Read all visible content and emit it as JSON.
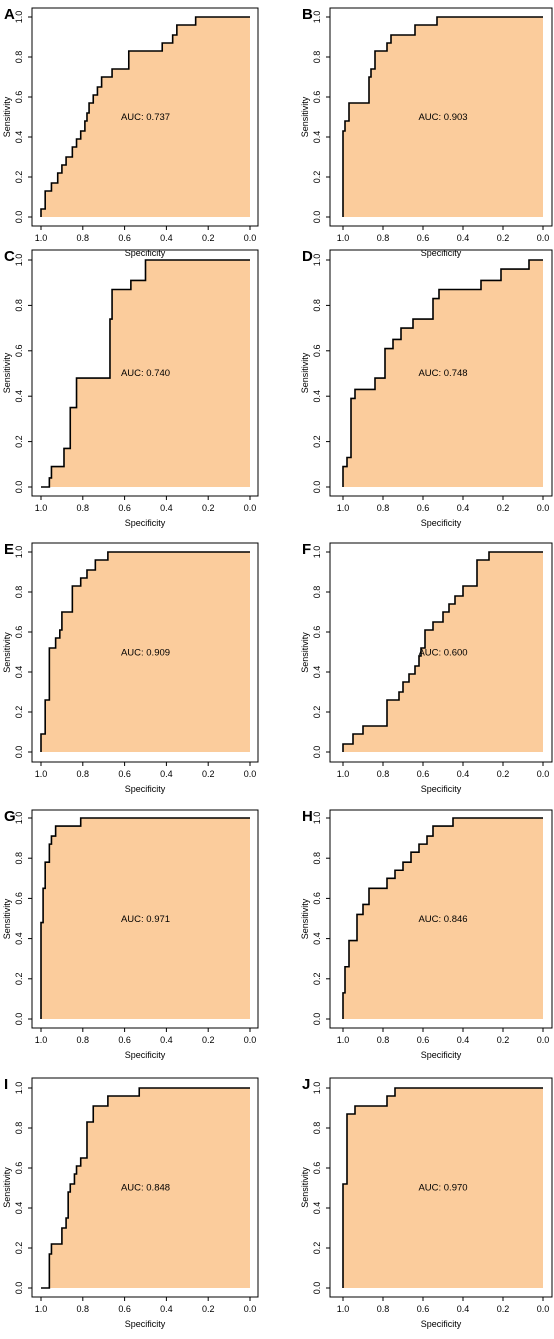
{
  "colors": {
    "fill": "#FBCC9C",
    "stroke": "#000000",
    "background": "#FFFFFF"
  },
  "chart_data": [
    {
      "panel": "A",
      "type": "area",
      "auc_label": "AUC: 0.737",
      "xlabel": "Specificity",
      "ylabel": "Sensitivity",
      "xlim": [
        1.0,
        0.0
      ],
      "ylim": [
        0.0,
        1.0
      ],
      "x_reversed": true,
      "xticks": [
        "1.0",
        "0.8",
        "0.6",
        "0.4",
        "0.2",
        "0.0"
      ],
      "yticks": [
        "0.0",
        "0.2",
        "0.4",
        "0.6",
        "0.8",
        "1.0"
      ],
      "x": [
        1.0,
        1.0,
        0.98,
        0.98,
        0.95,
        0.95,
        0.92,
        0.92,
        0.9,
        0.9,
        0.88,
        0.88,
        0.85,
        0.85,
        0.83,
        0.83,
        0.81,
        0.81,
        0.79,
        0.79,
        0.78,
        0.78,
        0.77,
        0.77,
        0.75,
        0.75,
        0.73,
        0.73,
        0.71,
        0.71,
        0.66,
        0.66,
        0.58,
        0.58,
        0.42,
        0.42,
        0.37,
        0.37,
        0.35,
        0.35,
        0.33,
        0.33,
        0.26,
        0.26,
        0.0
      ],
      "y": [
        0.0,
        0.04,
        0.04,
        0.13,
        0.13,
        0.17,
        0.17,
        0.22,
        0.22,
        0.26,
        0.26,
        0.3,
        0.3,
        0.35,
        0.35,
        0.39,
        0.39,
        0.43,
        0.43,
        0.48,
        0.48,
        0.52,
        0.52,
        0.57,
        0.57,
        0.61,
        0.61,
        0.65,
        0.65,
        0.7,
        0.7,
        0.74,
        0.74,
        0.83,
        0.83,
        0.87,
        0.87,
        0.91,
        0.91,
        0.96,
        0.96,
        0.96,
        0.96,
        1.0,
        1.0
      ]
    },
    {
      "panel": "B",
      "type": "area",
      "auc_label": "AUC: 0.903",
      "xlabel": "Specificity",
      "ylabel": "Sensitivity",
      "xlim": [
        1.0,
        0.0
      ],
      "ylim": [
        0.0,
        1.0
      ],
      "x_reversed": true,
      "xticks": [
        "1.0",
        "0.8",
        "0.6",
        "0.4",
        "0.2",
        "0.0"
      ],
      "yticks": [
        "0.0",
        "0.2",
        "0.4",
        "0.6",
        "0.8",
        "1.0"
      ],
      "x": [
        1.0,
        1.0,
        0.99,
        0.99,
        0.97,
        0.97,
        0.93,
        0.93,
        0.87,
        0.87,
        0.86,
        0.86,
        0.84,
        0.84,
        0.78,
        0.78,
        0.76,
        0.76,
        0.72,
        0.72,
        0.64,
        0.64,
        0.53,
        0.53,
        0.0
      ],
      "y": [
        0.0,
        0.43,
        0.43,
        0.48,
        0.48,
        0.57,
        0.57,
        0.57,
        0.57,
        0.7,
        0.7,
        0.74,
        0.74,
        0.83,
        0.83,
        0.87,
        0.87,
        0.91,
        0.91,
        0.91,
        0.91,
        0.96,
        0.96,
        1.0,
        1.0
      ]
    },
    {
      "panel": "C",
      "type": "area",
      "auc_label": "AUC: 0.740",
      "xlabel": "Specificity",
      "ylabel": "Sensitivity",
      "xlim": [
        1.0,
        0.0
      ],
      "ylim": [
        0.0,
        1.0
      ],
      "x_reversed": true,
      "xticks": [
        "1.0",
        "0.8",
        "0.6",
        "0.4",
        "0.2",
        "0.0"
      ],
      "yticks": [
        "0.0",
        "0.2",
        "0.4",
        "0.6",
        "0.8",
        "1.0"
      ],
      "x": [
        1.0,
        0.96,
        0.96,
        0.95,
        0.95,
        0.89,
        0.89,
        0.86,
        0.86,
        0.83,
        0.83,
        0.81,
        0.81,
        0.67,
        0.67,
        0.66,
        0.66,
        0.64,
        0.64,
        0.57,
        0.57,
        0.5,
        0.5,
        0.0
      ],
      "y": [
        0.0,
        0.0,
        0.04,
        0.04,
        0.09,
        0.09,
        0.17,
        0.17,
        0.35,
        0.35,
        0.48,
        0.48,
        0.48,
        0.48,
        0.74,
        0.74,
        0.87,
        0.87,
        0.87,
        0.87,
        0.91,
        0.91,
        1.0,
        1.0
      ]
    },
    {
      "panel": "D",
      "type": "area",
      "auc_label": "AUC: 0.748",
      "xlabel": "Specificity",
      "ylabel": "Sensitivity",
      "xlim": [
        1.0,
        0.0
      ],
      "ylim": [
        0.0,
        1.0
      ],
      "x_reversed": true,
      "xticks": [
        "1.0",
        "0.8",
        "0.6",
        "0.4",
        "0.2",
        "0.0"
      ],
      "yticks": [
        "0.0",
        "0.2",
        "0.4",
        "0.6",
        "0.8",
        "1.0"
      ],
      "x": [
        1.0,
        1.0,
        0.98,
        0.98,
        0.96,
        0.96,
        0.94,
        0.94,
        0.84,
        0.84,
        0.79,
        0.79,
        0.75,
        0.75,
        0.71,
        0.71,
        0.65,
        0.65,
        0.55,
        0.55,
        0.52,
        0.52,
        0.31,
        0.31,
        0.21,
        0.21,
        0.07,
        0.07,
        0.0
      ],
      "y": [
        0.0,
        0.09,
        0.09,
        0.13,
        0.13,
        0.39,
        0.39,
        0.43,
        0.43,
        0.48,
        0.48,
        0.61,
        0.61,
        0.65,
        0.65,
        0.7,
        0.7,
        0.74,
        0.74,
        0.83,
        0.83,
        0.87,
        0.87,
        0.91,
        0.91,
        0.96,
        0.96,
        1.0,
        1.0
      ]
    },
    {
      "panel": "E",
      "type": "area",
      "auc_label": "AUC: 0.909",
      "xlabel": "Specificity",
      "ylabel": "Sensitivity",
      "xlim": [
        1.0,
        0.0
      ],
      "ylim": [
        0.0,
        1.0
      ],
      "x_reversed": true,
      "xticks": [
        "1.0",
        "0.8",
        "0.6",
        "0.4",
        "0.2",
        "0.0"
      ],
      "yticks": [
        "0.0",
        "0.2",
        "0.4",
        "0.6",
        "0.8",
        "1.0"
      ],
      "x": [
        1.0,
        1.0,
        0.98,
        0.98,
        0.96,
        0.96,
        0.93,
        0.93,
        0.91,
        0.91,
        0.9,
        0.9,
        0.89,
        0.89,
        0.85,
        0.85,
        0.81,
        0.81,
        0.78,
        0.78,
        0.74,
        0.74,
        0.68,
        0.68,
        0.0
      ],
      "y": [
        0.0,
        0.09,
        0.09,
        0.26,
        0.26,
        0.52,
        0.52,
        0.57,
        0.57,
        0.61,
        0.61,
        0.7,
        0.7,
        0.7,
        0.7,
        0.83,
        0.83,
        0.87,
        0.87,
        0.91,
        0.91,
        0.96,
        0.96,
        1.0,
        1.0
      ]
    },
    {
      "panel": "F",
      "type": "area",
      "auc_label": "AUC: 0.600",
      "xlabel": "Specificity",
      "ylabel": "Sensitivity",
      "xlim": [
        1.0,
        0.0
      ],
      "ylim": [
        0.0,
        1.0
      ],
      "x_reversed": true,
      "xticks": [
        "1.0",
        "0.8",
        "0.6",
        "0.4",
        "0.2",
        "0.0"
      ],
      "yticks": [
        "0.0",
        "0.2",
        "0.4",
        "0.6",
        "0.8",
        "1.0"
      ],
      "x": [
        1.0,
        1.0,
        0.95,
        0.95,
        0.9,
        0.9,
        0.88,
        0.88,
        0.78,
        0.78,
        0.72,
        0.72,
        0.7,
        0.7,
        0.67,
        0.67,
        0.64,
        0.64,
        0.62,
        0.62,
        0.61,
        0.61,
        0.59,
        0.59,
        0.55,
        0.55,
        0.5,
        0.5,
        0.47,
        0.47,
        0.44,
        0.44,
        0.4,
        0.4,
        0.33,
        0.33,
        0.27,
        0.27,
        0.25,
        0.25,
        0.0
      ],
      "y": [
        0.0,
        0.04,
        0.04,
        0.09,
        0.09,
        0.13,
        0.13,
        0.13,
        0.13,
        0.26,
        0.26,
        0.3,
        0.3,
        0.35,
        0.35,
        0.39,
        0.39,
        0.43,
        0.43,
        0.48,
        0.48,
        0.52,
        0.52,
        0.61,
        0.61,
        0.65,
        0.65,
        0.7,
        0.7,
        0.74,
        0.74,
        0.78,
        0.78,
        0.83,
        0.83,
        0.96,
        0.96,
        1.0,
        1.0,
        1.0,
        1.0
      ]
    },
    {
      "panel": "G",
      "type": "area",
      "auc_label": "AUC: 0.971",
      "xlabel": "Specificity",
      "ylabel": "Sensitivity",
      "xlim": [
        1.0,
        0.0
      ],
      "ylim": [
        0.0,
        1.0
      ],
      "x_reversed": true,
      "xticks": [
        "1.0",
        "0.8",
        "0.6",
        "0.4",
        "0.2",
        "0.0"
      ],
      "yticks": [
        "0.0",
        "0.2",
        "0.4",
        "0.6",
        "0.8",
        "1.0"
      ],
      "x": [
        1.0,
        1.0,
        0.99,
        0.99,
        0.98,
        0.98,
        0.96,
        0.96,
        0.95,
        0.95,
        0.94,
        0.94,
        0.93,
        0.93,
        0.92,
        0.92,
        0.81,
        0.81,
        0.0
      ],
      "y": [
        0.0,
        0.48,
        0.48,
        0.65,
        0.65,
        0.78,
        0.78,
        0.87,
        0.87,
        0.91,
        0.91,
        0.91,
        0.91,
        0.96,
        0.96,
        0.96,
        0.96,
        1.0,
        1.0
      ]
    },
    {
      "panel": "H",
      "type": "area",
      "auc_label": "AUC: 0.846",
      "xlabel": "Specificity",
      "ylabel": "Sensitivity",
      "xlim": [
        1.0,
        0.0
      ],
      "ylim": [
        0.0,
        1.0
      ],
      "x_reversed": true,
      "xticks": [
        "1.0",
        "0.8",
        "0.6",
        "0.4",
        "0.2",
        "0.0"
      ],
      "yticks": [
        "0.0",
        "0.2",
        "0.4",
        "0.6",
        "0.8",
        "1.0"
      ],
      "x": [
        1.0,
        1.0,
        0.99,
        0.99,
        0.97,
        0.97,
        0.93,
        0.93,
        0.9,
        0.9,
        0.87,
        0.87,
        0.83,
        0.83,
        0.78,
        0.78,
        0.74,
        0.74,
        0.7,
        0.7,
        0.66,
        0.66,
        0.62,
        0.62,
        0.58,
        0.58,
        0.55,
        0.55,
        0.45,
        0.45,
        0.0
      ],
      "y": [
        0.0,
        0.13,
        0.13,
        0.26,
        0.26,
        0.39,
        0.39,
        0.52,
        0.52,
        0.57,
        0.57,
        0.65,
        0.65,
        0.65,
        0.65,
        0.7,
        0.7,
        0.74,
        0.74,
        0.78,
        0.78,
        0.83,
        0.83,
        0.87,
        0.87,
        0.91,
        0.91,
        0.96,
        0.96,
        1.0,
        1.0
      ]
    },
    {
      "panel": "I",
      "type": "area",
      "auc_label": "AUC: 0.848",
      "xlabel": "Specificity",
      "ylabel": "Sensitivity",
      "xlim": [
        1.0,
        0.0
      ],
      "ylim": [
        0.0,
        1.0
      ],
      "x_reversed": true,
      "xticks": [
        "1.0",
        "0.8",
        "0.6",
        "0.4",
        "0.2",
        "0.0"
      ],
      "yticks": [
        "0.0",
        "0.2",
        "0.4",
        "0.6",
        "0.8",
        "1.0"
      ],
      "x": [
        1.0,
        0.96,
        0.96,
        0.95,
        0.95,
        0.9,
        0.9,
        0.88,
        0.88,
        0.87,
        0.87,
        0.86,
        0.86,
        0.84,
        0.84,
        0.83,
        0.83,
        0.81,
        0.81,
        0.78,
        0.78,
        0.75,
        0.75,
        0.72,
        0.72,
        0.68,
        0.68,
        0.53,
        0.53,
        0.0
      ],
      "y": [
        0.0,
        0.0,
        0.17,
        0.17,
        0.22,
        0.22,
        0.3,
        0.3,
        0.35,
        0.35,
        0.48,
        0.48,
        0.52,
        0.52,
        0.57,
        0.57,
        0.61,
        0.61,
        0.65,
        0.65,
        0.83,
        0.83,
        0.91,
        0.91,
        0.91,
        0.91,
        0.96,
        0.96,
        1.0,
        1.0
      ]
    },
    {
      "panel": "J",
      "type": "area",
      "auc_label": "AUC: 0.970",
      "xlabel": "Specificity",
      "ylabel": "Sensitivity",
      "xlim": [
        1.0,
        0.0
      ],
      "ylim": [
        0.0,
        1.0
      ],
      "x_reversed": true,
      "xticks": [
        "1.0",
        "0.8",
        "0.6",
        "0.4",
        "0.2",
        "0.0"
      ],
      "yticks": [
        "0.0",
        "0.2",
        "0.4",
        "0.6",
        "0.8",
        "1.0"
      ],
      "x": [
        1.0,
        1.0,
        0.98,
        0.98,
        0.94,
        0.94,
        0.84,
        0.84,
        0.78,
        0.78,
        0.74,
        0.74,
        0.0
      ],
      "y": [
        0.0,
        0.52,
        0.52,
        0.87,
        0.87,
        0.91,
        0.91,
        0.91,
        0.91,
        0.96,
        0.96,
        1.0,
        1.0
      ]
    }
  ]
}
